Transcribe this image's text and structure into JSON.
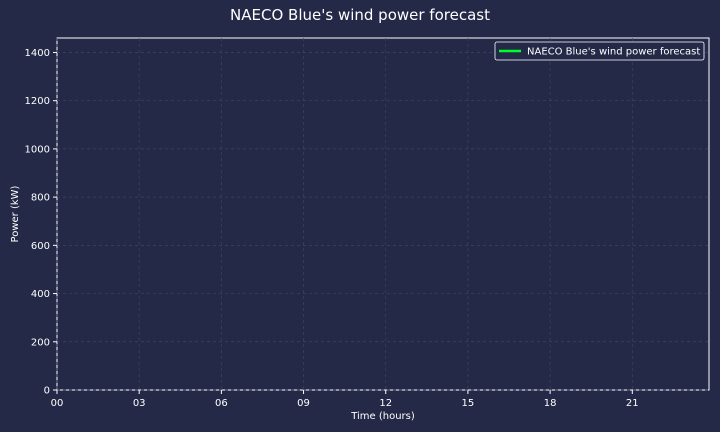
{
  "chart_data": {
    "type": "line",
    "title": "NAECO Blue's wind power forecast",
    "xlabel": "Time (hours)",
    "ylabel": "Power (kW)",
    "xlim": [
      0,
      23.8
    ],
    "ylim": [
      0,
      1460
    ],
    "x_ticks": [
      "00",
      "03",
      "06",
      "09",
      "12",
      "15",
      "18",
      "21"
    ],
    "x_tick_values": [
      0,
      3,
      6,
      9,
      12,
      15,
      18,
      21
    ],
    "y_ticks": [
      0,
      200,
      400,
      600,
      800,
      1000,
      1200,
      1400
    ],
    "grid": true,
    "legend_position": "top-right",
    "background_color": "#232946",
    "series": [
      {
        "name": "NAECO Blue's wind power forecast",
        "color": "#00ff2a",
        "x": [],
        "y": []
      }
    ]
  }
}
